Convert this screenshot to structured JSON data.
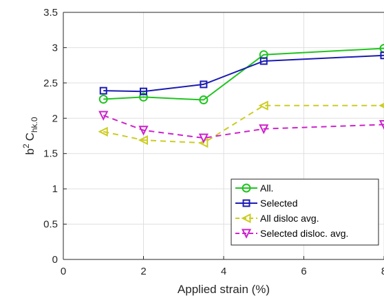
{
  "chart_data": {
    "type": "line",
    "xlabel": "Applied strain (%)",
    "ylabel_base": "b",
    "ylabel_sup": "2",
    "ylabel_main": "C",
    "ylabel_sub": "hk.0",
    "xlim": [
      0,
      8
    ],
    "ylim": [
      0,
      3.5
    ],
    "xticks": [
      "0",
      "2",
      "4",
      "6",
      "8"
    ],
    "yticks": [
      "0",
      "0.5",
      "1",
      "1.5",
      "2",
      "2.5",
      "3",
      "3.5"
    ],
    "grid": true,
    "legend_position": "bottom-right",
    "series": [
      {
        "name": "All.",
        "color": "#1fc41f",
        "marker": "circle",
        "dashed": false,
        "x": [
          1,
          2,
          3.5,
          5,
          8
        ],
        "y": [
          2.27,
          2.3,
          2.26,
          2.9,
          2.99
        ]
      },
      {
        "name": "Selected",
        "color": "#1a1ab3",
        "marker": "square",
        "dashed": false,
        "x": [
          1,
          2,
          3.5,
          5,
          8
        ],
        "y": [
          2.39,
          2.38,
          2.48,
          2.81,
          2.89
        ]
      },
      {
        "name": "All disloc avg.",
        "color": "#cccc22",
        "marker": "triangle-left",
        "dashed": true,
        "x": [
          1,
          2,
          3.5,
          5,
          8
        ],
        "y": [
          1.81,
          1.69,
          1.65,
          2.18,
          2.18
        ]
      },
      {
        "name": "Selected disloc. avg.",
        "color": "#cc22cc",
        "marker": "triangle-down",
        "dashed": true,
        "x": [
          1,
          2,
          3.5,
          5,
          8
        ],
        "y": [
          2.04,
          1.83,
          1.72,
          1.85,
          1.91
        ]
      }
    ]
  }
}
